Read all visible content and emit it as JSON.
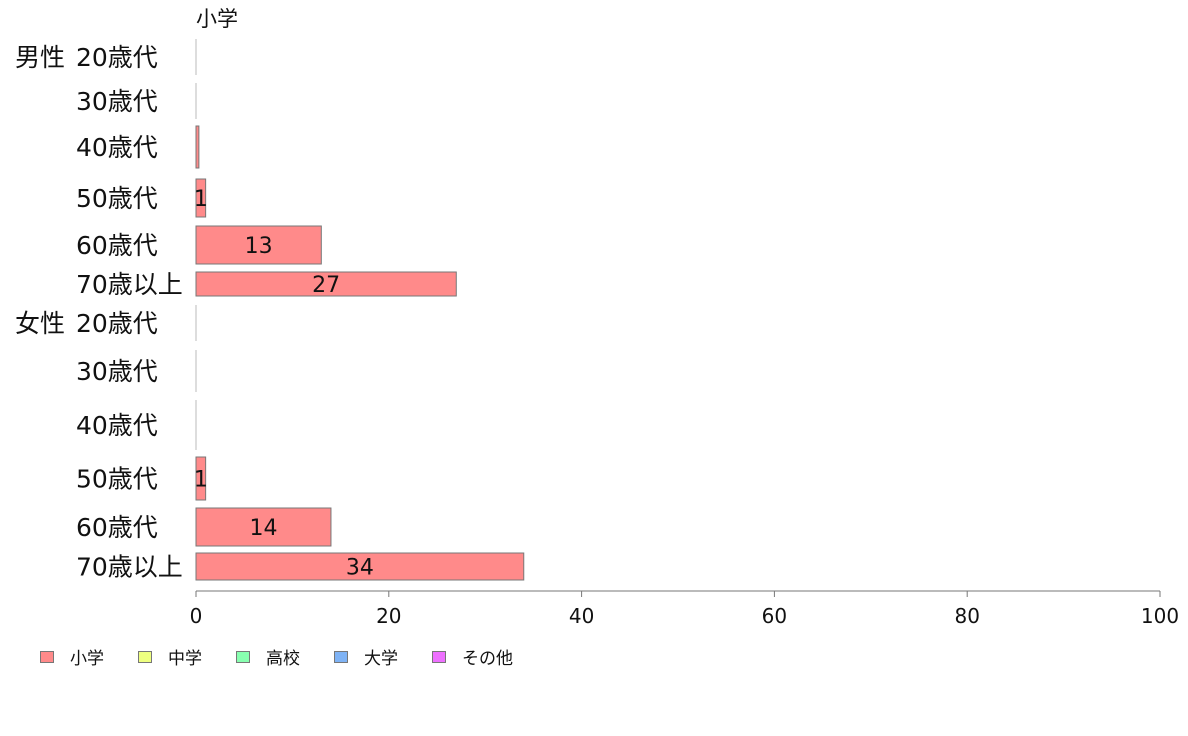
{
  "chart_data": {
    "type": "bar",
    "orientation": "horizontal",
    "title": "小学",
    "groups": [
      "男性",
      "女性"
    ],
    "categories": [
      "20歳代",
      "30歳代",
      "40歳代",
      "50歳代",
      "60歳代",
      "70歳以上"
    ],
    "series": [
      {
        "name": "小学",
        "color": "#ff8a8a",
        "values": {
          "男性": [
            0,
            0,
            0.3,
            1,
            13,
            27
          ],
          "女性": [
            0,
            0,
            0,
            1,
            14,
            34
          ]
        },
        "labels": {
          "男性": [
            "",
            "",
            "",
            "1",
            "13",
            "27"
          ],
          "女性": [
            "",
            "",
            "",
            "1",
            "14",
            "34"
          ]
        }
      }
    ],
    "xlim": [
      0,
      100
    ],
    "xticks": [
      "0",
      "20",
      "40",
      "60",
      "80",
      "100"
    ],
    "grid": false,
    "legend_position": "bottom-left"
  },
  "legend": [
    {
      "label": "小学",
      "color": "#ff8a8a"
    },
    {
      "label": "中学",
      "color": "#eeff80"
    },
    {
      "label": "高校",
      "color": "#88ffb0"
    },
    {
      "label": "大学",
      "color": "#7fb3f5"
    },
    {
      "label": "その他",
      "color": "#ee70ff"
    }
  ]
}
